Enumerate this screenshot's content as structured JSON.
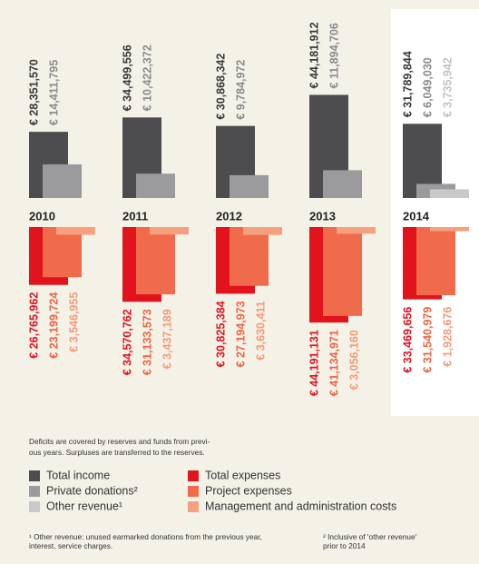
{
  "chart_data": {
    "type": "bar",
    "categories": [
      "2010",
      "2011",
      "2012",
      "2013",
      "2014"
    ],
    "highlight_category": "2014",
    "series": [
      {
        "name": "Total income",
        "color": "#4d4d4f",
        "label_color": "#3a3a3a",
        "values": [
          28351570,
          34499556,
          30868342,
          44181912,
          31789844
        ],
        "value_labels": [
          "€ 28,351,570",
          "€ 34,499,556",
          "€ 30,868,342",
          "€ 44,181,912",
          "€ 31,789,844"
        ]
      },
      {
        "name": "Private donations²",
        "color": "#9b9b9d",
        "label_color": "#8c8c8e",
        "values": [
          14411795,
          10422372,
          9784972,
          11894706,
          6049030
        ],
        "value_labels": [
          "€ 14,411,795",
          "€ 10,422,372",
          "€ 9,784,972",
          "€ 11,894,706",
          "€ 6,049,030"
        ]
      },
      {
        "name": "Other revenue¹",
        "color": "#c9c9cb",
        "label_color": "#c2c2c4",
        "values": [
          null,
          null,
          null,
          null,
          3735942
        ],
        "value_labels": [
          null,
          null,
          null,
          null,
          "€ 3,735,942"
        ]
      },
      {
        "name": "Total expenses",
        "color": "#e3131e",
        "label_color": "#e3131e",
        "values": [
          26765962,
          34570762,
          30825384,
          44191131,
          33469656
        ],
        "value_labels": [
          "€ 26,765,962",
          "€ 34,570,762",
          "€ 30,825,384",
          "€ 44,191,131",
          "€ 33,469,656"
        ]
      },
      {
        "name": "Project expenses",
        "color": "#f06b4c",
        "label_color": "#ee6446",
        "values": [
          23199724,
          31133573,
          27194973,
          41134971,
          31540979
        ],
        "value_labels": [
          "€ 23,199,724",
          "€ 31,133,573",
          "€ 27,194,973",
          "€ 41,134,971",
          "€ 31,540,979"
        ]
      },
      {
        "name": "Management and administration costs",
        "color": "#f6a07f",
        "label_color": "#f39b79",
        "values": [
          3546955,
          3437189,
          3630411,
          3056160,
          1928676
        ],
        "value_labels": [
          "€ 3,546,955",
          "€ 3,437,189",
          "€ 3,630,411",
          "€ 3,056,160",
          "€ 1,928,676"
        ]
      }
    ],
    "note": [
      "Deficits are covered by reserves and funds from previ-",
      "ous years. Surpluses are transferred to the reserves."
    ],
    "footnotes": [
      [
        "¹ Other revenue: unused earmarked donations from the previous year,",
        "interest, service charges."
      ],
      [
        "² Inclusive of 'other revenue'",
        "prior to 2014"
      ]
    ]
  }
}
